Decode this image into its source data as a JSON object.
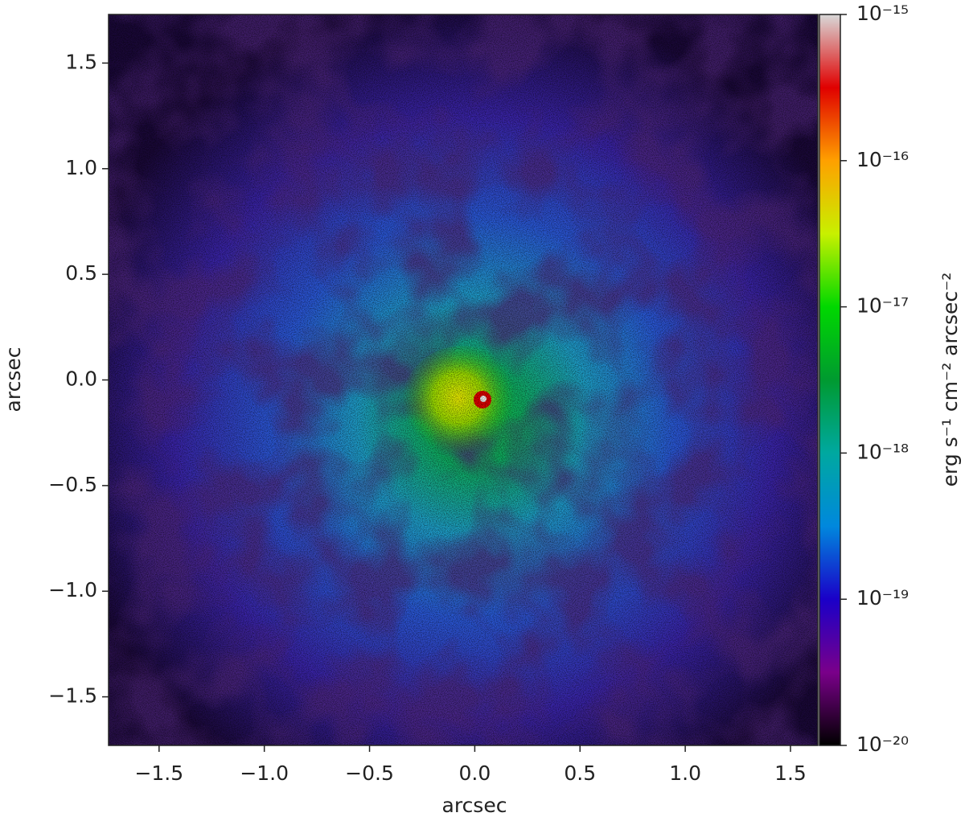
{
  "chart_data": {
    "type": "image",
    "x_label": "arcsec",
    "y_label": "arcsec",
    "xlim": [
      -1.74,
      1.63
    ],
    "ylim": [
      -1.73,
      1.73
    ],
    "xticks": [
      {
        "value": -1.5,
        "label": "−1.5"
      },
      {
        "value": -1.0,
        "label": "−1.0"
      },
      {
        "value": -0.5,
        "label": "−0.5"
      },
      {
        "value": 0.0,
        "label": "0.0"
      },
      0.5,
      {
        "value": 1.0,
        "label": "1.0"
      },
      1.5
    ],
    "yticks": [
      {
        "value": -1.5,
        "label": "−1.5"
      },
      {
        "value": -1.0,
        "label": "−1.0"
      },
      {
        "value": -0.5,
        "label": "−0.5"
      },
      {
        "value": 0.0,
        "label": "0.0"
      },
      0.5,
      {
        "value": 1.0,
        "label": "1.0"
      },
      1.5
    ],
    "colorbar": {
      "label": "erg s⁻¹ cm⁻² arcsec⁻²",
      "scale": "log",
      "lim": [
        1e-20,
        1e-15
      ],
      "ticks": [
        {
          "value": 1e-20,
          "label": "10⁻²⁰"
        },
        {
          "value": 1e-19,
          "label": "10⁻¹⁹"
        },
        {
          "value": 1e-18,
          "label": "10⁻¹⁸"
        },
        {
          "value": 1e-17,
          "label": "10⁻¹⁷"
        },
        {
          "value": 1e-16,
          "label": "10⁻¹⁶"
        },
        {
          "value": 1e-15,
          "label": "10⁻¹⁵"
        }
      ]
    }
  }
}
